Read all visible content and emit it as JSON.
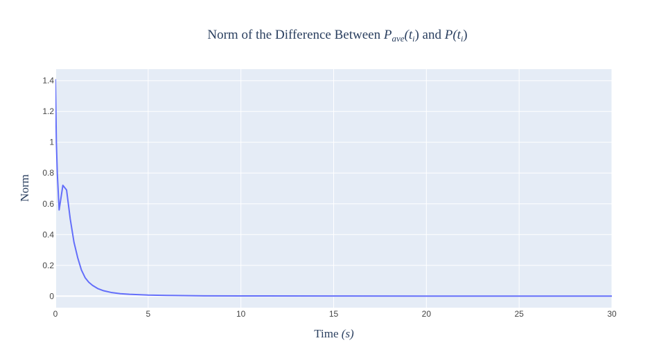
{
  "chart_data": {
    "type": "line",
    "title": {
      "prefix": "Norm of the Difference Between ",
      "sym1": "P",
      "sub1": "ave",
      "arg1_open": "(t",
      "arg1_sub": "i",
      "arg1_close": ")",
      "conj": " and ",
      "sym2": "P",
      "arg2_open": "(t",
      "arg2_sub": "i",
      "arg2_close": ")"
    },
    "xlabel": {
      "text": "Time ",
      "unit": "(s)"
    },
    "ylabel": "Norm",
    "xlim": [
      0,
      30
    ],
    "ylim": [
      -0.075,
      1.475
    ],
    "xticks": [
      0,
      5,
      10,
      15,
      20,
      25,
      30
    ],
    "yticks": [
      0,
      0.2,
      0.4,
      0.6,
      0.8,
      1,
      1.2,
      1.4
    ],
    "yticklabels": [
      "0",
      "0.2",
      "0.4",
      "0.6",
      "0.8",
      "1",
      "1.2",
      "1.4"
    ],
    "grid": true,
    "series": [
      {
        "color": "#636efa",
        "x": [
          0,
          0.05,
          0.1,
          0.2,
          0.4,
          0.6,
          0.8,
          1.0,
          1.2,
          1.4,
          1.6,
          1.8,
          2.0,
          2.3,
          2.6,
          3.0,
          3.5,
          4.0,
          5.0,
          6.0,
          8.0,
          10.0,
          15.0,
          20.0,
          25.0,
          30.0
        ],
        "y": [
          1.41,
          1.0,
          0.8,
          0.56,
          0.72,
          0.69,
          0.5,
          0.35,
          0.25,
          0.17,
          0.12,
          0.09,
          0.07,
          0.048,
          0.035,
          0.024,
          0.016,
          0.012,
          0.007,
          0.005,
          0.002,
          0.0015,
          0.001,
          0.0005,
          0.0003,
          0.0002
        ]
      }
    ]
  }
}
